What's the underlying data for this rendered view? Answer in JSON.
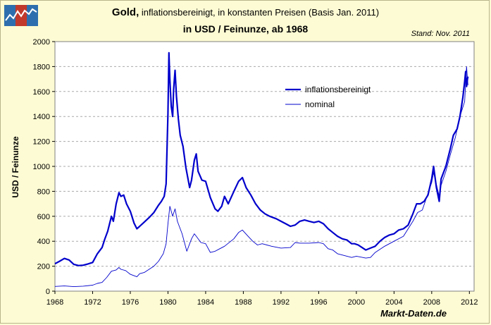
{
  "header": {
    "title_bold": "Gold,",
    "title_rest": " inflationsbereinigt, in konstanten Preisen (Basis Jan. 2011)",
    "title_line2": "in USD / Feinunze, ab 1968",
    "stand": "Stand: Nov. 2011"
  },
  "footer": {
    "brand": "Markt-Daten.de"
  },
  "logo": {
    "name": "markt-daten-logo",
    "colors": [
      "#2d6fae",
      "#c0392b",
      "#2d6fae"
    ]
  },
  "chart_data": {
    "type": "line",
    "xlabel": "",
    "ylabel": "USD / Feinunze",
    "xlim": [
      1968,
      2012.5
    ],
    "ylim": [
      0,
      2000
    ],
    "xticks": [
      "1968",
      "1972",
      "1976",
      "1980",
      "1984",
      "1988",
      "1992",
      "1996",
      "2000",
      "2004",
      "2008",
      "2012"
    ],
    "yticks": [
      "0",
      "200",
      "400",
      "600",
      "800",
      "1000",
      "1200",
      "1400",
      "1600",
      "1800",
      "2000"
    ],
    "grid": true,
    "legend_position": "upper-center",
    "series": [
      {
        "name": "inflationsbereinigt",
        "color": "#0000cc",
        "style": "thick",
        "x": [
          1968.0,
          1968.5,
          1969.0,
          1969.5,
          1970.0,
          1970.5,
          1971.0,
          1971.5,
          1972.0,
          1972.5,
          1973.0,
          1973.3,
          1973.6,
          1974.0,
          1974.2,
          1974.5,
          1974.8,
          1975.0,
          1975.3,
          1975.6,
          1976.0,
          1976.4,
          1976.7,
          1977.0,
          1977.5,
          1978.0,
          1978.5,
          1979.0,
          1979.3,
          1979.6,
          1979.8,
          1980.0,
          1980.1,
          1980.2,
          1980.35,
          1980.5,
          1980.6,
          1980.75,
          1980.9,
          1981.1,
          1981.3,
          1981.6,
          1981.9,
          1982.3,
          1982.5,
          1982.8,
          1983.0,
          1983.2,
          1983.6,
          1984.0,
          1984.5,
          1985.0,
          1985.3,
          1985.7,
          1986.0,
          1986.4,
          1987.0,
          1987.5,
          1987.9,
          1988.3,
          1988.8,
          1989.3,
          1989.8,
          1990.3,
          1990.8,
          1991.5,
          1992.0,
          1992.5,
          1993.0,
          1993.5,
          1994.0,
          1994.5,
          1995.0,
          1995.5,
          1996.0,
          1996.5,
          1997.0,
          1997.5,
          1998.0,
          1998.5,
          1999.0,
          1999.5,
          1999.8,
          2000.2,
          2000.6,
          2001.0,
          2001.5,
          2002.0,
          2002.5,
          2003.0,
          2003.5,
          2004.0,
          2004.5,
          2005.0,
          2005.5,
          2006.0,
          2006.4,
          2006.8,
          2007.2,
          2007.6,
          2008.0,
          2008.2,
          2008.5,
          2008.8,
          2009.0,
          2009.5,
          2010.0,
          2010.3,
          2010.7,
          2011.0,
          2011.3,
          2011.5,
          2011.6,
          2011.7,
          2011.8,
          2011.85
        ],
        "y": [
          220,
          240,
          262,
          250,
          215,
          205,
          208,
          218,
          230,
          300,
          350,
          420,
          480,
          600,
          560,
          700,
          790,
          760,
          770,
          700,
          640,
          545,
          500,
          520,
          555,
          590,
          630,
          690,
          720,
          760,
          860,
          1420,
          1910,
          1700,
          1480,
          1400,
          1620,
          1770,
          1560,
          1380,
          1250,
          1160,
          990,
          830,
          890,
          1050,
          1100,
          960,
          890,
          880,
          750,
          660,
          640,
          680,
          760,
          700,
          800,
          880,
          910,
          830,
          770,
          700,
          650,
          620,
          600,
          580,
          560,
          540,
          520,
          530,
          560,
          570,
          560,
          550,
          560,
          540,
          500,
          470,
          440,
          420,
          410,
          380,
          380,
          370,
          350,
          330,
          345,
          360,
          400,
          430,
          450,
          460,
          490,
          500,
          530,
          620,
          700,
          700,
          720,
          770,
          900,
          1000,
          830,
          720,
          900,
          1000,
          1150,
          1250,
          1300,
          1400,
          1550,
          1680,
          1760,
          1640,
          1700,
          1720
        ]
      },
      {
        "name": "nominal",
        "color": "#0000cc",
        "style": "thin",
        "x": [
          1968.0,
          1969.0,
          1970.0,
          1971.0,
          1972.0,
          1972.5,
          1973.0,
          1973.5,
          1974.0,
          1974.5,
          1974.8,
          1975.0,
          1975.5,
          1976.0,
          1976.7,
          1977.0,
          1977.5,
          1978.0,
          1978.5,
          1979.0,
          1979.5,
          1979.8,
          1980.0,
          1980.2,
          1980.5,
          1980.75,
          1981.0,
          1981.5,
          1982.0,
          1982.5,
          1982.8,
          1983.0,
          1983.5,
          1984.0,
          1984.5,
          1985.0,
          1985.5,
          1986.0,
          1987.0,
          1987.5,
          1987.9,
          1988.5,
          1989.0,
          1989.5,
          1990.0,
          1991.0,
          1992.0,
          1993.0,
          1993.5,
          1994.0,
          1995.0,
          1996.0,
          1996.5,
          1997.0,
          1997.5,
          1998.0,
          1999.0,
          1999.5,
          2000.0,
          2001.0,
          2001.5,
          2002.0,
          2003.0,
          2004.0,
          2005.0,
          2006.0,
          2006.5,
          2007.0,
          2008.0,
          2008.2,
          2008.8,
          2009.0,
          2009.5,
          2010.0,
          2010.5,
          2011.0,
          2011.5,
          2011.7,
          2011.85
        ],
        "y": [
          38,
          42,
          36,
          40,
          48,
          62,
          70,
          110,
          160,
          170,
          190,
          175,
          165,
          135,
          115,
          140,
          150,
          175,
          200,
          240,
          300,
          380,
          540,
          680,
          600,
          660,
          560,
          460,
          320,
          420,
          460,
          440,
          390,
          380,
          310,
          320,
          340,
          360,
          420,
          470,
          490,
          440,
          400,
          370,
          380,
          360,
          345,
          350,
          390,
          385,
          385,
          390,
          380,
          340,
          330,
          300,
          280,
          270,
          280,
          265,
          270,
          310,
          360,
          400,
          440,
          560,
          630,
          650,
          870,
          950,
          760,
          850,
          960,
          1100,
          1230,
          1400,
          1520,
          1800,
          1650
        ]
      }
    ]
  }
}
